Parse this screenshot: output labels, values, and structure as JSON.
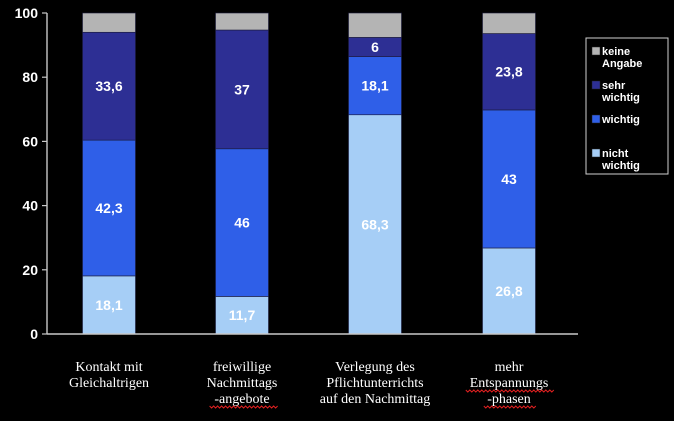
{
  "chart_data": {
    "type": "bar",
    "stacked": true,
    "categories": [
      [
        "Kontakt mit",
        "Gleichaltrigen"
      ],
      [
        "freiwillige",
        "Nachmittags",
        "-angebote"
      ],
      [
        "Verlegung des",
        "Pflichtunterrichts",
        "auf den Nachmittag"
      ],
      [
        "mehr",
        "Entspannungs",
        "-phasen"
      ]
    ],
    "series": [
      {
        "name": [
          "nicht",
          "wichtig"
        ],
        "color": "#a6cef6",
        "values": [
          18.1,
          11.7,
          68.3,
          26.8
        ],
        "labels": [
          "18,1",
          "11,7",
          "68,3",
          "26,8"
        ],
        "label_color": "#ffffff"
      },
      {
        "name": [
          "wichtig"
        ],
        "color": "#2f5fe8",
        "values": [
          42.3,
          46,
          18.1,
          43
        ],
        "labels": [
          "42,3",
          "46",
          "18,1",
          "43"
        ],
        "label_color": "#ffffff"
      },
      {
        "name": [
          "sehr",
          "wichtig"
        ],
        "color": "#2d2f94",
        "values": [
          33.6,
          37,
          6,
          23.8
        ],
        "labels": [
          "33,6",
          "37",
          "6",
          "23,8"
        ],
        "label_color": "#ffffff"
      },
      {
        "name": [
          "keine",
          "Angabe"
        ],
        "color": "#b4b4b4",
        "values": [
          6,
          5.3,
          7.6,
          6.4
        ],
        "labels": [
          "",
          "",
          "",
          ""
        ],
        "label_color": "#ffffff"
      }
    ],
    "legend_order": [
      3,
      2,
      1,
      0
    ],
    "yticks": [
      "0",
      "20",
      "40",
      "60",
      "80",
      "100"
    ],
    "ylim": [
      0,
      100
    ],
    "ystep": 20,
    "grid": false,
    "legend_position": "right",
    "title": "",
    "xlabel": "",
    "ylabel": "",
    "colors": {
      "background": "#000000",
      "plot_background": "#000000",
      "axis": "#c9c9c9",
      "text": "#ffffff",
      "legend_border": "#d0d0d0",
      "spellcheck_underline": "#e02020"
    },
    "spellcheck_underlined_words": [
      "-angebote",
      "Entspannungs",
      "-phasen"
    ]
  }
}
